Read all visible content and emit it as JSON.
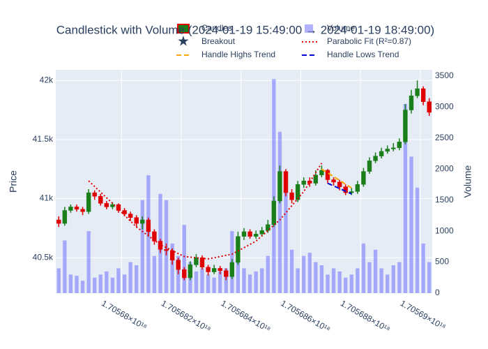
{
  "chart_data": {
    "type": "candlestick",
    "title": "Candlestick with Volume (2024-01-19 15:49:00 → 2024-01-19 18:49:00)",
    "ylabel": "Price",
    "y2label": "Volume",
    "xlim": [
      1705677800000000000,
      1705690400000000000
    ],
    "xticks": [
      {
        "value": 1705680000000000000,
        "label": "1.70568×10¹⁸"
      },
      {
        "value": 1705682000000000000,
        "label": "1.705682×10¹⁸"
      },
      {
        "value": 1705684000000000000,
        "label": "1.705684×10¹⁸"
      },
      {
        "value": 1705686000000000000,
        "label": "1.705686×10¹⁸"
      },
      {
        "value": 1705688000000000000,
        "label": "1.705688×10¹⁸"
      },
      {
        "value": 1705690000000000000,
        "label": "1.70569×10¹⁸"
      }
    ],
    "ylim": [
      40200,
      42090
    ],
    "yticks": [
      {
        "value": 40500,
        "label": "40.5k"
      },
      {
        "value": 41000,
        "label": "41k"
      },
      {
        "value": 41500,
        "label": "41.5k"
      },
      {
        "value": 42000,
        "label": "42k"
      }
    ],
    "y2lim": [
      0,
      3600
    ],
    "y2ticks": [
      0,
      500,
      1000,
      1500,
      2000,
      2500,
      3000,
      3500
    ],
    "grid": true,
    "x": [
      1705677900000000000,
      1705678100000000000,
      1705678300000000000,
      1705678500000000000,
      1705678700000000000,
      1705678900000000000,
      1705679100000000000,
      1705679300000000000,
      1705679500000000000,
      1705679700000000000,
      1705679900000000000,
      1705680100000000000,
      1705680300000000000,
      1705680500000000000,
      1705680700000000000,
      1705680900000000000,
      1705681100000000000,
      1705681300000000000,
      1705681500000000000,
      1705681700000000000,
      1705681900000000000,
      1705682100000000000,
      1705682300000000000,
      1705682500000000000,
      1705682700000000000,
      1705682900000000000,
      1705683100000000000,
      1705683300000000000,
      1705683500000000000,
      1705683700000000000,
      1705683900000000000,
      1705684100000000000,
      1705684300000000000,
      1705684500000000000,
      1705684700000000000,
      1705684900000000000,
      1705685100000000000,
      1705685300000000000,
      1705685500000000000,
      1705685700000000000,
      1705685900000000000,
      1705686100000000000,
      1705686300000000000,
      1705686500000000000,
      1705686700000000000,
      1705686900000000000,
      1705687100000000000,
      1705687300000000000,
      1705687500000000000,
      1705687700000000000,
      1705687900000000000,
      1705688100000000000,
      1705688300000000000,
      1705688500000000000,
      1705688700000000000,
      1705688900000000000,
      1705689100000000000,
      1705689300000000000,
      1705689500000000000,
      1705689700000000000,
      1705689900000000000,
      1705690100000000000,
      1705690300000000000
    ],
    "candles": {
      "name": "Candles",
      "increasing_color": "#1a7f1a",
      "decreasing_color": "#e00000",
      "open": [
        40820,
        40790,
        40900,
        40930,
        40910,
        40890,
        41050,
        41020,
        40960,
        40930,
        40950,
        40900,
        40870,
        40840,
        40790,
        40820,
        40720,
        40640,
        40570,
        40560,
        40480,
        40400,
        40330,
        40440,
        40500,
        40420,
        40380,
        40410,
        40390,
        40340,
        40460,
        40680,
        40720,
        40680,
        40700,
        40730,
        40780,
        40980,
        41230,
        41050,
        40990,
        41120,
        41150,
        41130,
        41200,
        41240,
        41160,
        41140,
        41100,
        41050,
        41060,
        41120,
        41230,
        41320,
        41360,
        41400,
        41420,
        41430,
        41480,
        41750,
        41870,
        41930,
        41820
      ],
      "high": [
        40850,
        40930,
        40950,
        40950,
        40930,
        41080,
        41070,
        41040,
        40980,
        40970,
        40960,
        40920,
        40890,
        40860,
        40850,
        40840,
        40740,
        40660,
        40620,
        40580,
        40500,
        40420,
        40470,
        40530,
        40520,
        40440,
        40440,
        40430,
        40410,
        40490,
        40720,
        40750,
        40740,
        40730,
        40760,
        40820,
        41020,
        41280,
        41250,
        41080,
        41150,
        41180,
        41180,
        41240,
        41280,
        41250,
        41180,
        41160,
        41120,
        41090,
        41150,
        41260,
        41350,
        41390,
        41430,
        41450,
        41470,
        41510,
        41800,
        41920,
        42000,
        41950,
        41850
      ],
      "low": [
        40760,
        40770,
        40880,
        40890,
        40860,
        40870,
        40990,
        40940,
        40910,
        40910,
        40880,
        40850,
        40810,
        40760,
        40740,
        40680,
        40610,
        40540,
        40520,
        40440,
        40360,
        40310,
        40310,
        40420,
        40400,
        40350,
        40360,
        40360,
        40310,
        40320,
        40440,
        40650,
        40660,
        40660,
        40680,
        40710,
        40760,
        40960,
        41020,
        40960,
        40970,
        41090,
        41100,
        41110,
        41180,
        41130,
        41110,
        41070,
        41030,
        41030,
        41040,
        41100,
        41210,
        41300,
        41340,
        41380,
        41400,
        41410,
        41460,
        41720,
        41850,
        41790,
        41700
      ],
      "close": [
        40790,
        40900,
        40930,
        40910,
        40890,
        41050,
        41020,
        40960,
        40930,
        40950,
        40900,
        40870,
        40840,
        40790,
        40820,
        40720,
        40640,
        40570,
        40560,
        40480,
        40400,
        40330,
        40440,
        40500,
        40420,
        40380,
        40410,
        40390,
        40340,
        40460,
        40680,
        40720,
        40680,
        40700,
        40730,
        40780,
        40980,
        41230,
        41050,
        40990,
        41120,
        41150,
        41130,
        41200,
        41240,
        41160,
        41140,
        41100,
        41050,
        41060,
        41120,
        41230,
        41320,
        41360,
        41400,
        41420,
        41430,
        41480,
        41750,
        41870,
        41930,
        41820,
        41730
      ]
    },
    "volume": {
      "name": "Volume",
      "color": "#6464ff",
      "axis": "y2",
      "values": [
        400,
        850,
        300,
        280,
        200,
        1000,
        250,
        300,
        350,
        250,
        400,
        300,
        500,
        450,
        1500,
        1900,
        600,
        1600,
        1500,
        800,
        600,
        1100,
        500,
        350,
        400,
        300,
        250,
        350,
        400,
        1000,
        800,
        400,
        300,
        350,
        400,
        600,
        3450,
        2600,
        1800,
        700,
        400,
        600,
        650,
        500,
        450,
        300,
        400,
        350,
        250,
        300,
        400,
        800,
        500,
        700,
        400,
        300,
        450,
        500,
        3050,
        2200,
        1700,
        800,
        500
      ]
    },
    "overlays": [
      {
        "name": "Breakout",
        "color": "#ffd700",
        "style": "star",
        "x": [],
        "values": []
      },
      {
        "name": "Parabolic Fit (R²=0.87)",
        "color": "#e00000",
        "style": "dot",
        "x": [
          1705678900000000000,
          1705679700000000000,
          1705680500000000000,
          1705681300000000000,
          1705682100000000000,
          1705682900000000000,
          1705683700000000000,
          1705684500000000000,
          1705685300000000000,
          1705686100000000000,
          1705686700000000000
        ],
        "values": [
          41150,
          40960,
          40760,
          40610,
          40510,
          40490,
          40530,
          40640,
          40820,
          41060,
          41300
        ]
      },
      {
        "name": "Handle Highs Trend",
        "color": "#ffa500",
        "style": "dash",
        "x": [
          1705686700000000000,
          1705687700000000000
        ],
        "values": [
          41250,
          41090
        ]
      },
      {
        "name": "Handle Lows Trend",
        "color": "#0000dd",
        "style": "dash",
        "x": [
          1705686900000000000,
          1705687700000000000
        ],
        "values": [
          41130,
          41040
        ]
      }
    ]
  }
}
